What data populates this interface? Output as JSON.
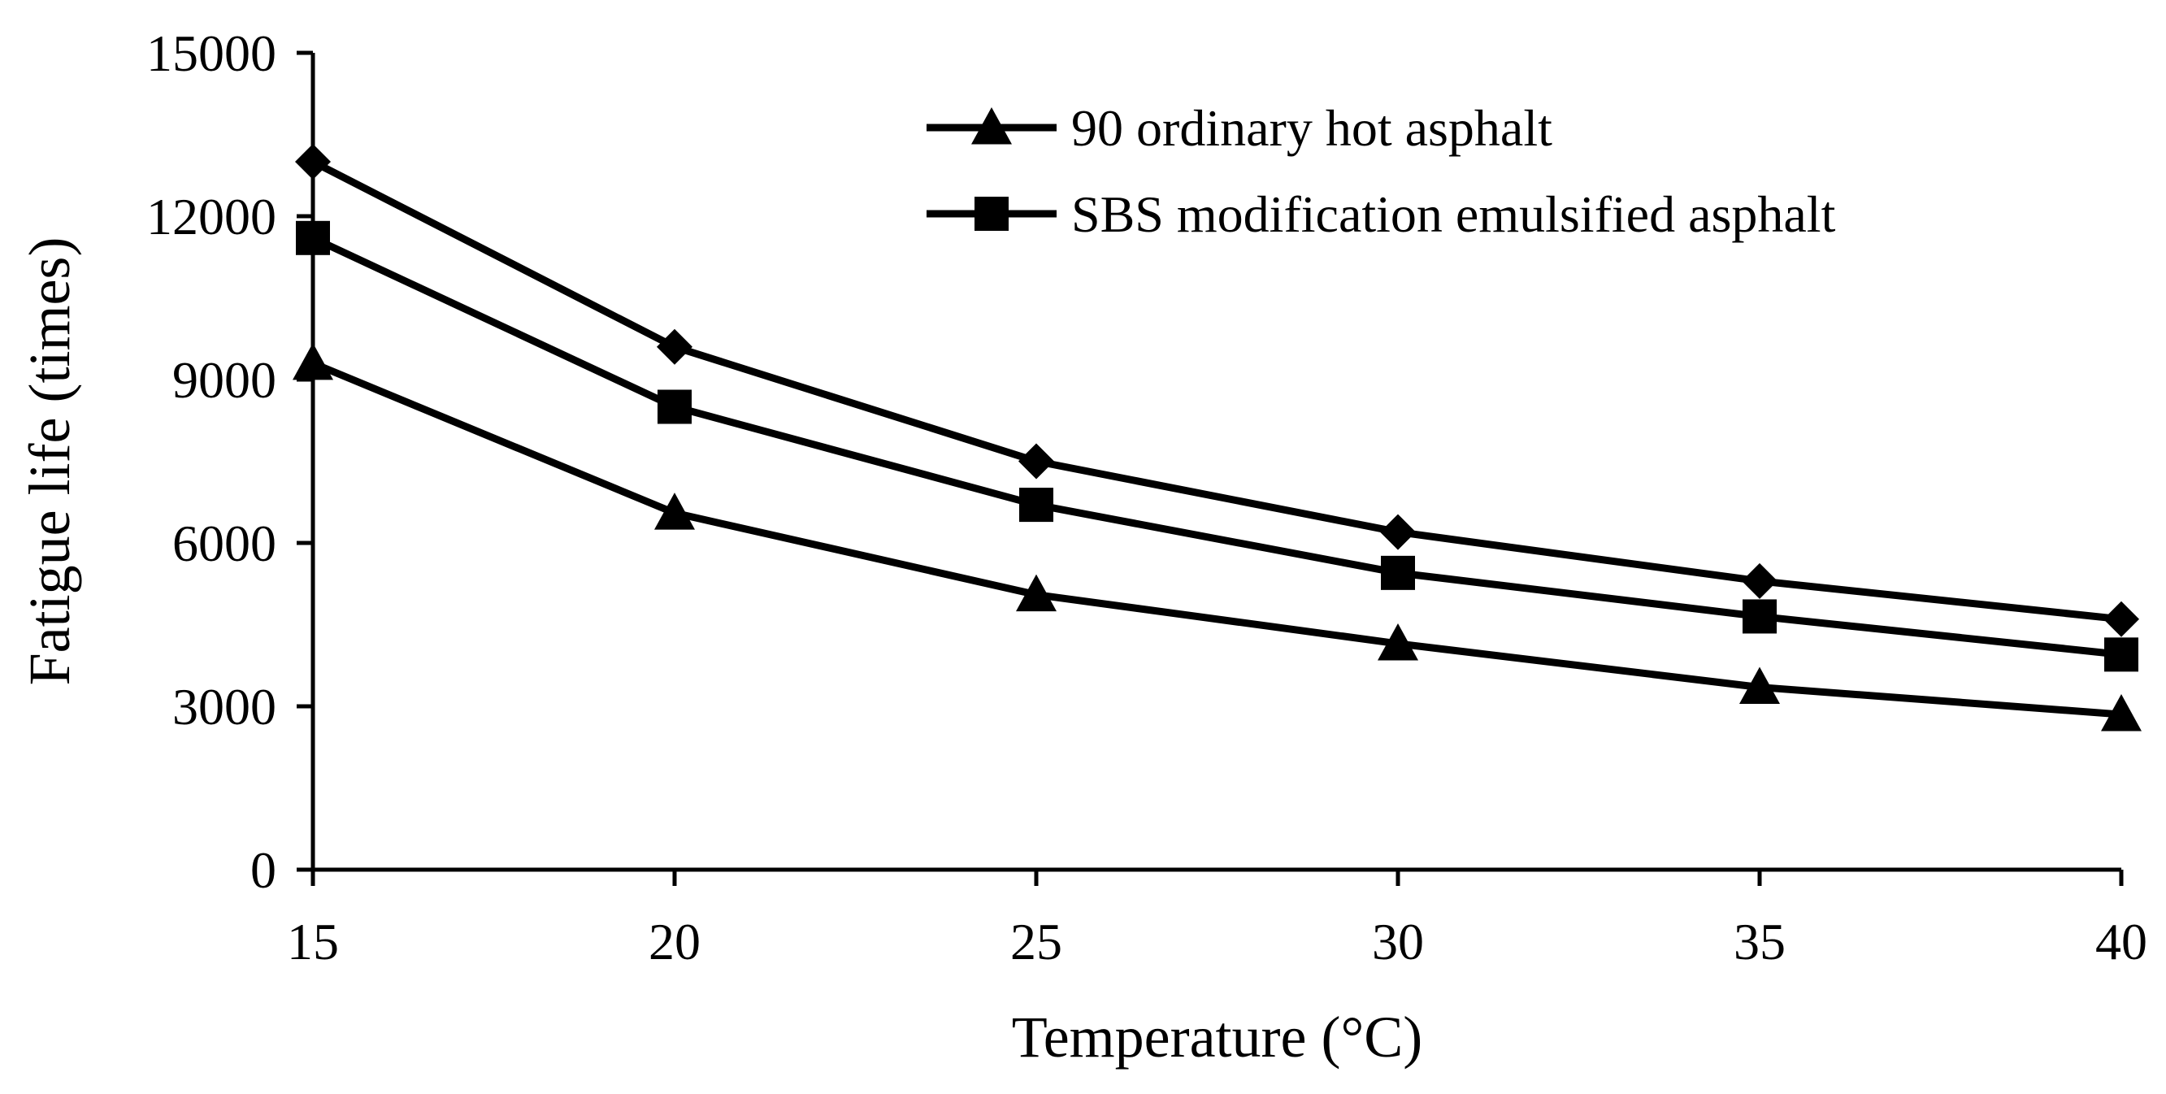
{
  "chart_data": {
    "type": "line",
    "title": "",
    "xlabel": "Temperature (°C)",
    "ylabel": "Fatigue life (times)",
    "x": [
      15,
      20,
      25,
      30,
      35,
      40
    ],
    "x_tick_labels": [
      "15",
      "20",
      "25",
      "30",
      "35",
      "40"
    ],
    "y_tick_labels": [
      "0",
      "3000",
      "6000",
      "9000",
      "12000",
      "15000"
    ],
    "y_ticks": [
      0,
      3000,
      6000,
      9000,
      12000,
      15000
    ],
    "xlim": [
      15,
      40
    ],
    "ylim": [
      0,
      15000
    ],
    "grid": false,
    "legend_position": "top-right",
    "series": [
      {
        "name": "",
        "marker": "diamond",
        "in_legend": false,
        "values": [
          13000,
          9600,
          7500,
          6200,
          5300,
          4600
        ]
      },
      {
        "name": "SBS modification emulsified asphalt",
        "marker": "square",
        "in_legend": true,
        "values": [
          11600,
          8500,
          6700,
          5450,
          4650,
          3950
        ]
      },
      {
        "name": "90 ordinary hot asphalt",
        "marker": "triangle",
        "in_legend": true,
        "values": [
          9300,
          6550,
          5050,
          4150,
          3350,
          2850
        ]
      }
    ],
    "legend": [
      {
        "label": "90 ordinary hot asphalt",
        "marker": "triangle"
      },
      {
        "label": "SBS modification emulsified asphalt",
        "marker": "square"
      }
    ],
    "line_color": "#000000"
  }
}
